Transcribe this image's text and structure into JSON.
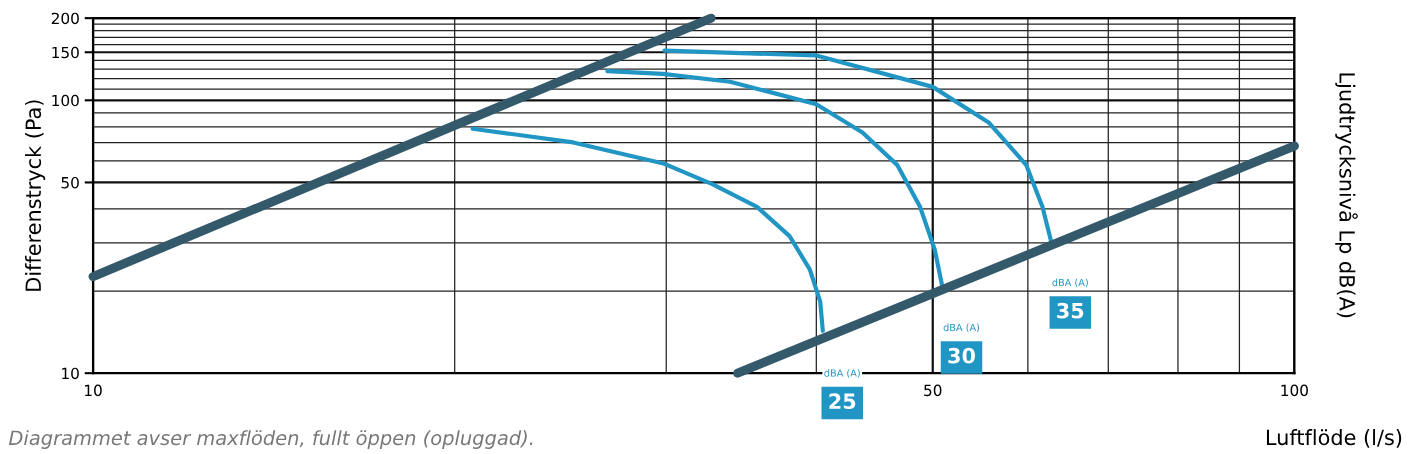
{
  "chart_data": {
    "type": "line",
    "xlabel": "Luftflöde (l/s)",
    "ylabel": "Differenstryck (Pa)",
    "y2label": "Ljudtrycksnivå Lp dB(A)",
    "log": "xy",
    "grid": true,
    "xlim": [
      10,
      100
    ],
    "xticks": [
      10,
      50,
      100
    ],
    "ylim": [
      10,
      200
    ],
    "yticks": [
      10,
      50,
      100,
      150,
      200
    ],
    "series": [
      {
        "color": "#34596b",
        "x": [
          10,
          32.7
        ],
        "values": [
          22.6,
          200
        ]
      },
      {
        "color": "#34596b",
        "x": [
          34.4,
          100
        ],
        "values": [
          10,
          68
        ]
      },
      {
        "name": "25",
        "color": "#2196c4",
        "x": [
          20.7,
          25.1,
          29.9,
          32.8,
          35.7,
          38.0,
          39.5,
          40.3,
          40.5
        ],
        "values": [
          78.7,
          70.1,
          58.5,
          49.2,
          40.7,
          31.8,
          24.0,
          18.3,
          14.3
        ]
      },
      {
        "name": "30",
        "color": "#2196c4",
        "x": [
          26.8,
          29.8,
          33.9,
          40.0,
          43.7,
          46.7,
          48.8,
          50.2,
          50.9
        ],
        "values": [
          128,
          125,
          117,
          96.8,
          76.2,
          58,
          40.7,
          28.3,
          21.0
        ]
      },
      {
        "name": "35",
        "color": "#2196c4",
        "x": [
          29.9,
          40.0,
          50.0,
          55.7,
          59.8,
          61.7,
          62.7
        ],
        "values": [
          152,
          146,
          112,
          82.7,
          58,
          40.7,
          30.7
        ]
      }
    ],
    "annotations": [
      "dBA (A)",
      "dBA (A)",
      "dBA (A)",
      "Diagrammet avser maxflöden, fullt öppen (opluggad)."
    ]
  }
}
